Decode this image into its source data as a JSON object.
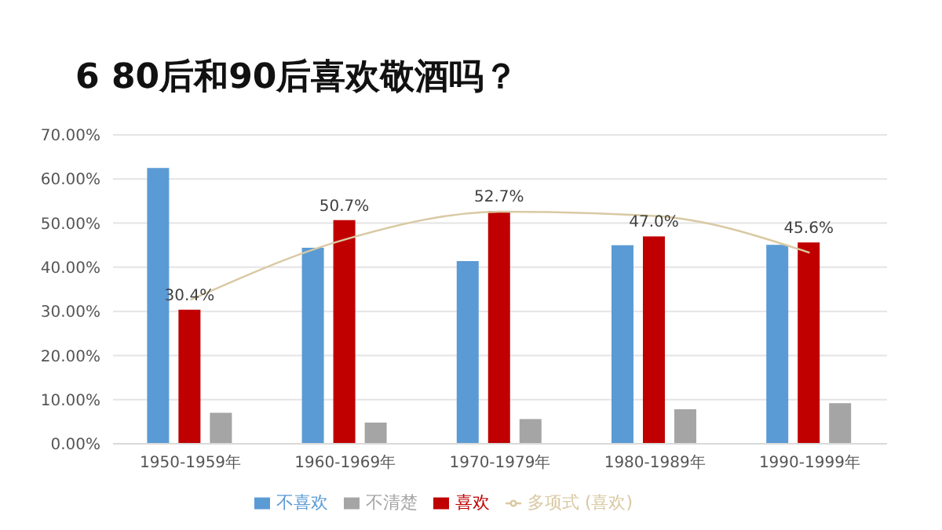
{
  "chart_data": {
    "type": "bar",
    "title": "6 80后和90后喜欢敬酒吗？",
    "categories": [
      "1950-1959年",
      "1960-1969年",
      "1970-1979年",
      "1980-1989年",
      "1990-1999年"
    ],
    "series": [
      {
        "name": "不喜欢",
        "color": "#5b9bd5",
        "values": [
          62.5,
          44.4,
          41.4,
          45.0,
          45.1
        ]
      },
      {
        "name": "喜欢",
        "color": "#c00000",
        "values": [
          30.4,
          50.7,
          52.7,
          47.0,
          45.6
        ],
        "value_labels": [
          "30.4%",
          "50.7%",
          "52.7%",
          "47.0%",
          "45.6%"
        ]
      },
      {
        "name": "不清楚",
        "color": "#a5a5a5",
        "values": [
          7.0,
          4.8,
          5.6,
          7.8,
          9.2
        ]
      },
      {
        "name": "多项式 (喜欢)",
        "type": "line",
        "color": "#d9c9a3",
        "values": [
          32.6,
          46.3,
          52.6,
          51.6,
          43.3
        ]
      }
    ],
    "ylim": [
      0,
      70
    ],
    "yticks": [
      {
        "value": 0,
        "label": "0.00%"
      },
      {
        "value": 10,
        "label": "10.00%"
      },
      {
        "value": 20,
        "label": "20.00%"
      },
      {
        "value": 30,
        "label": "30.00%"
      },
      {
        "value": 40,
        "label": "40.00%"
      },
      {
        "value": 50,
        "label": "50.00%"
      },
      {
        "value": 60,
        "label": "60.00%"
      },
      {
        "value": 70,
        "label": "70.00%"
      }
    ],
    "grid": "y",
    "legend": "bottom",
    "marker": "none"
  }
}
